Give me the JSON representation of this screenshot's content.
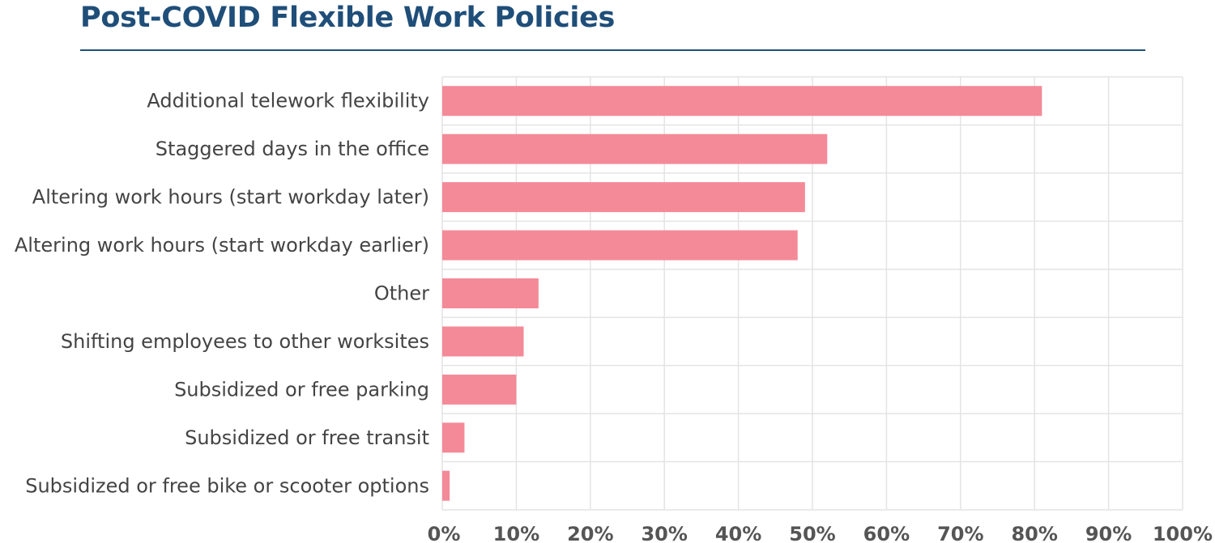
{
  "title": "Post-COVID Flexible Work Policies",
  "chart_data": {
    "type": "bar",
    "orientation": "horizontal",
    "title": "Post-COVID Flexible Work Policies",
    "categories": [
      "Additional telework flexibility",
      "Staggered days in the office",
      "Altering work hours (start workday later)",
      "Altering work hours (start workday earlier)",
      "Other",
      "Shifting employees to other worksites",
      "Subsidized or free parking",
      "Subsidized or free transit",
      "Subsidized or free bike or scooter options"
    ],
    "values": [
      81,
      52,
      49,
      48,
      13,
      11,
      10,
      3,
      1
    ],
    "xlim": [
      0,
      100
    ],
    "x_ticks": [
      0,
      10,
      20,
      30,
      40,
      50,
      60,
      70,
      80,
      90,
      100
    ],
    "x_tick_labels": [
      "0%",
      "10%",
      "20%",
      "30%",
      "40%",
      "50%",
      "60%",
      "70%",
      "80%",
      "90%",
      "100%"
    ],
    "xlabel": "",
    "ylabel": "",
    "grid": true,
    "legend": "none",
    "bar_color": "#f48a98",
    "grid_color": "#e4e4e4",
    "title_color": "#1f4e79"
  }
}
